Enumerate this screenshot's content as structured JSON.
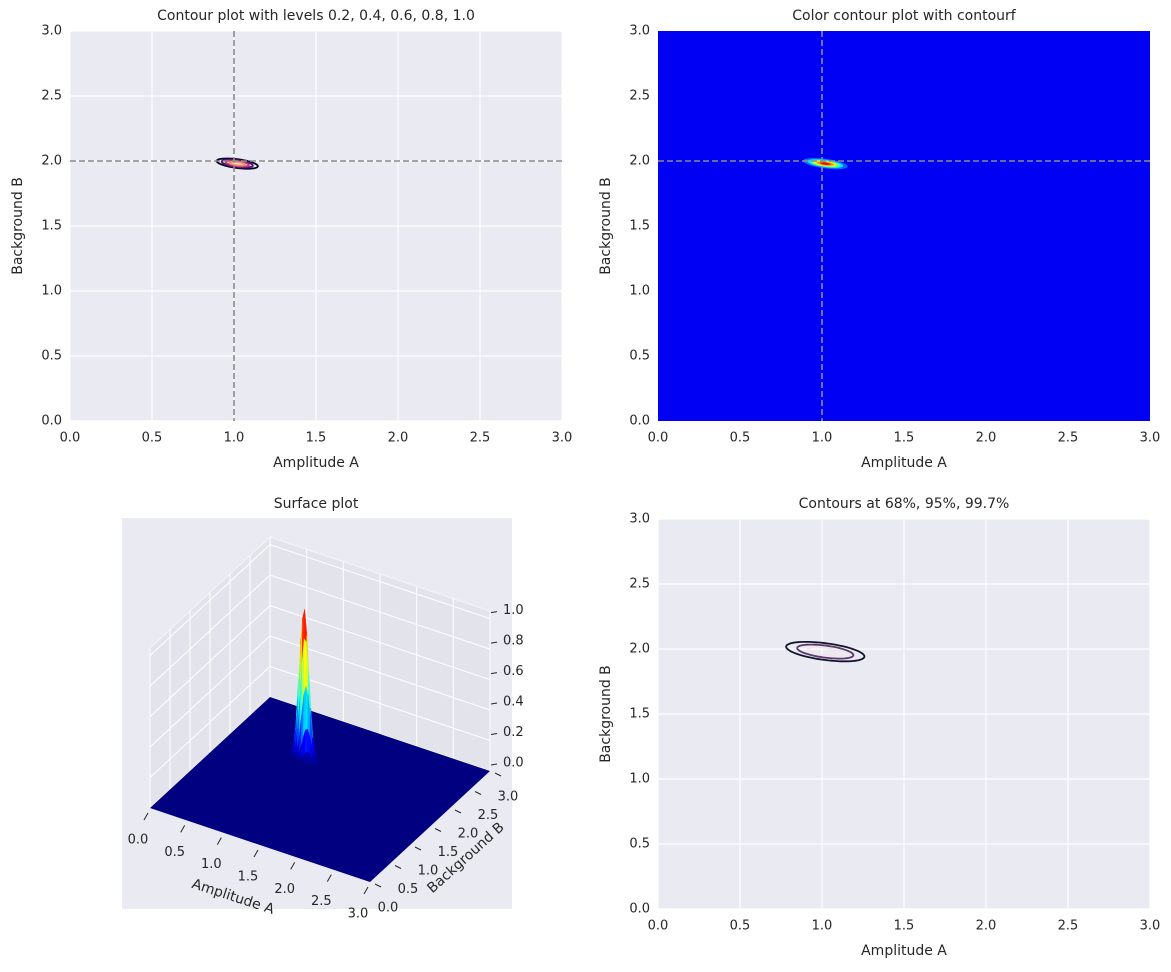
{
  "chart_data": [
    {
      "type": "contour",
      "title": "Contour plot with levels 0.2, 0.4, 0.6, 0.8, 1.0",
      "xlabel": "Amplitude A",
      "ylabel": "Background B",
      "xlim": [
        0,
        3
      ],
      "ylim": [
        0,
        3
      ],
      "xticks": [
        {
          "value": 0,
          "label": "0.0"
        },
        0.5,
        {
          "value": 1,
          "label": "1.0"
        },
        1.5,
        {
          "value": 2,
          "label": "2.0"
        },
        2.5,
        {
          "value": 3,
          "label": "3.0"
        }
      ],
      "yticks": [
        {
          "value": 0,
          "label": "0.0"
        },
        0.5,
        {
          "value": 1,
          "label": "1.0"
        },
        1.5,
        {
          "value": 2,
          "label": "2.0"
        },
        2.5,
        {
          "value": 3,
          "label": "3.0"
        }
      ],
      "grid": true,
      "vline": 1,
      "hline": 2,
      "peak": {
        "A": 1.02,
        "B": 1.98,
        "sigma_A": 0.07,
        "sigma_B": 0.022,
        "rho": -0.5
      },
      "levels": [
        0.2,
        0.4,
        0.6,
        0.8,
        1.0
      ],
      "colors": [
        "#0b0420",
        "#51127c",
        "#b73779",
        "#fc8961",
        "#fcfdbf"
      ]
    },
    {
      "type": "contourf",
      "title": "Color contour plot with contourf",
      "xlabel": "Amplitude A",
      "ylabel": "Background B",
      "xlim": [
        0,
        3
      ],
      "ylim": [
        0,
        3
      ],
      "xticks": [
        {
          "value": 0,
          "label": "0.0"
        },
        0.5,
        {
          "value": 1,
          "label": "1.0"
        },
        1.5,
        {
          "value": 2,
          "label": "2.0"
        },
        2.5,
        {
          "value": 3,
          "label": "3.0"
        }
      ],
      "yticks": [
        {
          "value": 0,
          "label": "0.0"
        },
        0.5,
        {
          "value": 1,
          "label": "1.0"
        },
        1.5,
        {
          "value": 2,
          "label": "2.0"
        },
        2.5,
        {
          "value": 3,
          "label": "3.0"
        }
      ],
      "vline": 1,
      "hline": 2,
      "peak": {
        "A": 1.02,
        "B": 1.98,
        "sigma_A": 0.07,
        "sigma_B": 0.022,
        "rho": -0.5
      },
      "levels": [
        0,
        0.15,
        0.3,
        0.45,
        0.6,
        0.75,
        0.9
      ],
      "colors": [
        "#0000f5",
        "#0070ff",
        "#10e0e8",
        "#70ff88",
        "#e0ff18",
        "#ff9000",
        "#d01000"
      ]
    },
    {
      "type": "surface3d",
      "title": "Surface plot",
      "xlabel": "Amplitude A",
      "ylabel": "Background B",
      "xlim": [
        0,
        3
      ],
      "ylim": [
        0,
        3
      ],
      "zlim": [
        0,
        1.05
      ],
      "xticks": [
        {
          "value": 0,
          "label": "0.0"
        },
        0.5,
        {
          "value": 1,
          "label": "1.0"
        },
        1.5,
        {
          "value": 2,
          "label": "2.0"
        },
        2.5,
        {
          "value": 3,
          "label": "3.0"
        }
      ],
      "yticks": [
        {
          "value": 0,
          "label": "0.0"
        },
        0.5,
        {
          "value": 1,
          "label": "1.0"
        },
        1.5,
        {
          "value": 2,
          "label": "2.0"
        },
        2.5,
        {
          "value": 3,
          "label": "3.0"
        }
      ],
      "zticks": [
        {
          "value": 0,
          "label": "0.0"
        },
        0.2,
        0.4,
        0.6,
        0.8,
        {
          "value": 1,
          "label": "1.0"
        }
      ],
      "peak": {
        "A": 1.02,
        "B": 1.98,
        "sigma_A": 0.07,
        "sigma_B": 0.022,
        "rho": -0.5
      },
      "colormap": "jet"
    },
    {
      "type": "confidence_contour",
      "title": "Contours at 68%, 95%, 99.7%",
      "xlabel": "Amplitude A",
      "ylabel": "Background B",
      "xlim": [
        0,
        3
      ],
      "ylim": [
        0,
        3
      ],
      "xticks": [
        {
          "value": 0,
          "label": "0.0"
        },
        0.5,
        {
          "value": 1,
          "label": "1.0"
        },
        1.5,
        {
          "value": 2,
          "label": "2.0"
        },
        2.5,
        {
          "value": 3,
          "label": "3.0"
        }
      ],
      "yticks": [
        {
          "value": 0,
          "label": "0.0"
        },
        0.5,
        {
          "value": 1,
          "label": "1.0"
        },
        1.5,
        {
          "value": 2,
          "label": "2.0"
        },
        2.5,
        {
          "value": 3,
          "label": "3.0"
        }
      ],
      "grid": true,
      "peak": {
        "A": 1.02,
        "B": 1.98,
        "sigma_A": 0.07,
        "sigma_B": 0.022,
        "rho": -0.5
      },
      "levels": [
        68,
        95,
        99.7
      ],
      "colors": [
        "#f3e4ec",
        "#5a3a6a",
        "#14142e"
      ]
    }
  ]
}
